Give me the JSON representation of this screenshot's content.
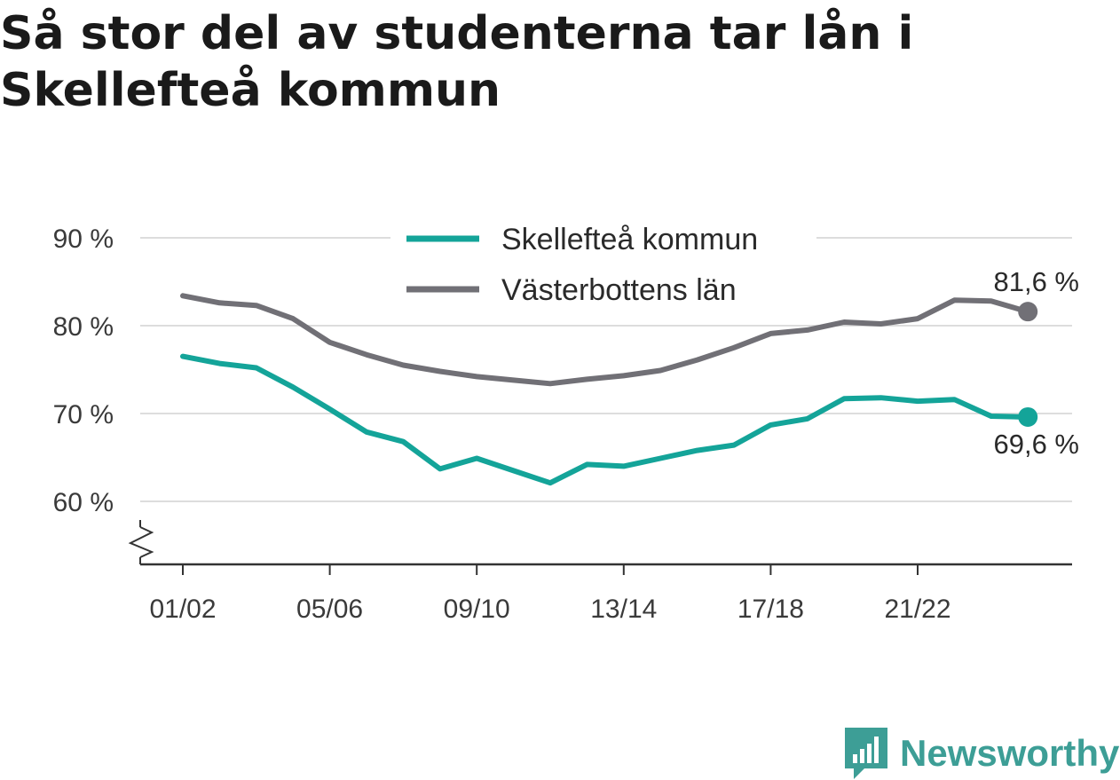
{
  "title": "Så stor del av studenterna tar lån i Skellefteå kommun",
  "brand": {
    "name": "Newsworthy"
  },
  "colors": {
    "series1": "#14a499",
    "series2": "#717076",
    "grid": "#dddddd",
    "axis": "#333333"
  },
  "chart_data": {
    "type": "line",
    "title": "Så stor del av studenterna tar lån i Skellefteå kommun",
    "xlabel": "",
    "ylabel": "",
    "ylim": [
      60,
      90
    ],
    "y_ticks": [
      "90 %",
      "80 %",
      "70 %",
      "60 %"
    ],
    "x_tick_labels": [
      "01/02",
      "05/06",
      "09/10",
      "13/14",
      "17/18",
      "21/22"
    ],
    "grid": true,
    "legend_position": "top",
    "x": [
      "01/02",
      "02/03",
      "03/04",
      "04/05",
      "05/06",
      "06/07",
      "07/08",
      "08/09",
      "09/10",
      "10/11",
      "11/12",
      "12/13",
      "13/14",
      "14/15",
      "15/16",
      "16/17",
      "17/18",
      "18/19",
      "19/20",
      "20/21",
      "21/22",
      "22/23",
      "23/24",
      "24/25"
    ],
    "series": [
      {
        "name": "Skellefteå kommun",
        "color": "#14a499",
        "values": [
          76.5,
          75.7,
          75.2,
          73.0,
          70.5,
          67.9,
          66.8,
          63.7,
          64.9,
          63.5,
          62.1,
          64.2,
          64.0,
          64.9,
          65.8,
          66.4,
          68.7,
          69.4,
          71.7,
          71.8,
          71.4,
          71.6,
          69.7,
          69.6
        ],
        "end_label": "69,6 %"
      },
      {
        "name": "Västerbottens län",
        "color": "#717076",
        "values": [
          83.4,
          82.6,
          82.3,
          80.8,
          78.1,
          76.7,
          75.5,
          74.8,
          74.2,
          73.8,
          73.4,
          73.9,
          74.3,
          74.9,
          76.1,
          77.5,
          79.1,
          79.5,
          80.4,
          80.2,
          80.8,
          82.9,
          82.8,
          81.6
        ],
        "end_label": "81,6 %"
      }
    ]
  }
}
